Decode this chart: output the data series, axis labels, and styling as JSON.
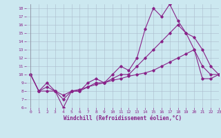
{
  "xlabel": "Windchill (Refroidissement éolien,°C)",
  "xlim": [
    -0.5,
    23
  ],
  "ylim": [
    6,
    18.5
  ],
  "xticks": [
    0,
    1,
    2,
    3,
    4,
    5,
    6,
    7,
    8,
    9,
    10,
    11,
    12,
    13,
    14,
    15,
    16,
    17,
    18,
    19,
    20,
    21,
    22,
    23
  ],
  "yticks": [
    6,
    7,
    8,
    9,
    10,
    11,
    12,
    13,
    14,
    15,
    16,
    17,
    18
  ],
  "bg_color": "#cce8f0",
  "line_color": "#882288",
  "grid_color": "#aabbcc",
  "line1_x": [
    0,
    1,
    2,
    3,
    4,
    5,
    6,
    7,
    8,
    9,
    10,
    11,
    12,
    13,
    14,
    15,
    16,
    17,
    18,
    19,
    20,
    21,
    22,
    23
  ],
  "line1_y": [
    10,
    8,
    9,
    8,
    6,
    8,
    8,
    9,
    9.5,
    9,
    10,
    11,
    10.5,
    12,
    15.5,
    18,
    17,
    18.5,
    16.5,
    15,
    13,
    11,
    10,
    10
  ],
  "line2_x": [
    0,
    1,
    2,
    3,
    4,
    5,
    6,
    7,
    8,
    9,
    10,
    11,
    12,
    13,
    14,
    15,
    16,
    17,
    18,
    19,
    20,
    21,
    22,
    23
  ],
  "line2_y": [
    10,
    8,
    8.5,
    8,
    7,
    8,
    8,
    8.5,
    9,
    9,
    9.5,
    10,
    10,
    11,
    12,
    13,
    14,
    15,
    16,
    15,
    14.5,
    13,
    11,
    10
  ],
  "line3_x": [
    0,
    1,
    2,
    3,
    4,
    5,
    6,
    7,
    8,
    9,
    10,
    11,
    12,
    13,
    14,
    15,
    16,
    17,
    18,
    19,
    20,
    21,
    22,
    23
  ],
  "line3_y": [
    10,
    8,
    8,
    8,
    7.5,
    8,
    8.2,
    8.5,
    8.8,
    9,
    9.3,
    9.5,
    9.8,
    10,
    10.2,
    10.5,
    11,
    11.5,
    12,
    12.5,
    13,
    9.5,
    9.5,
    10
  ]
}
